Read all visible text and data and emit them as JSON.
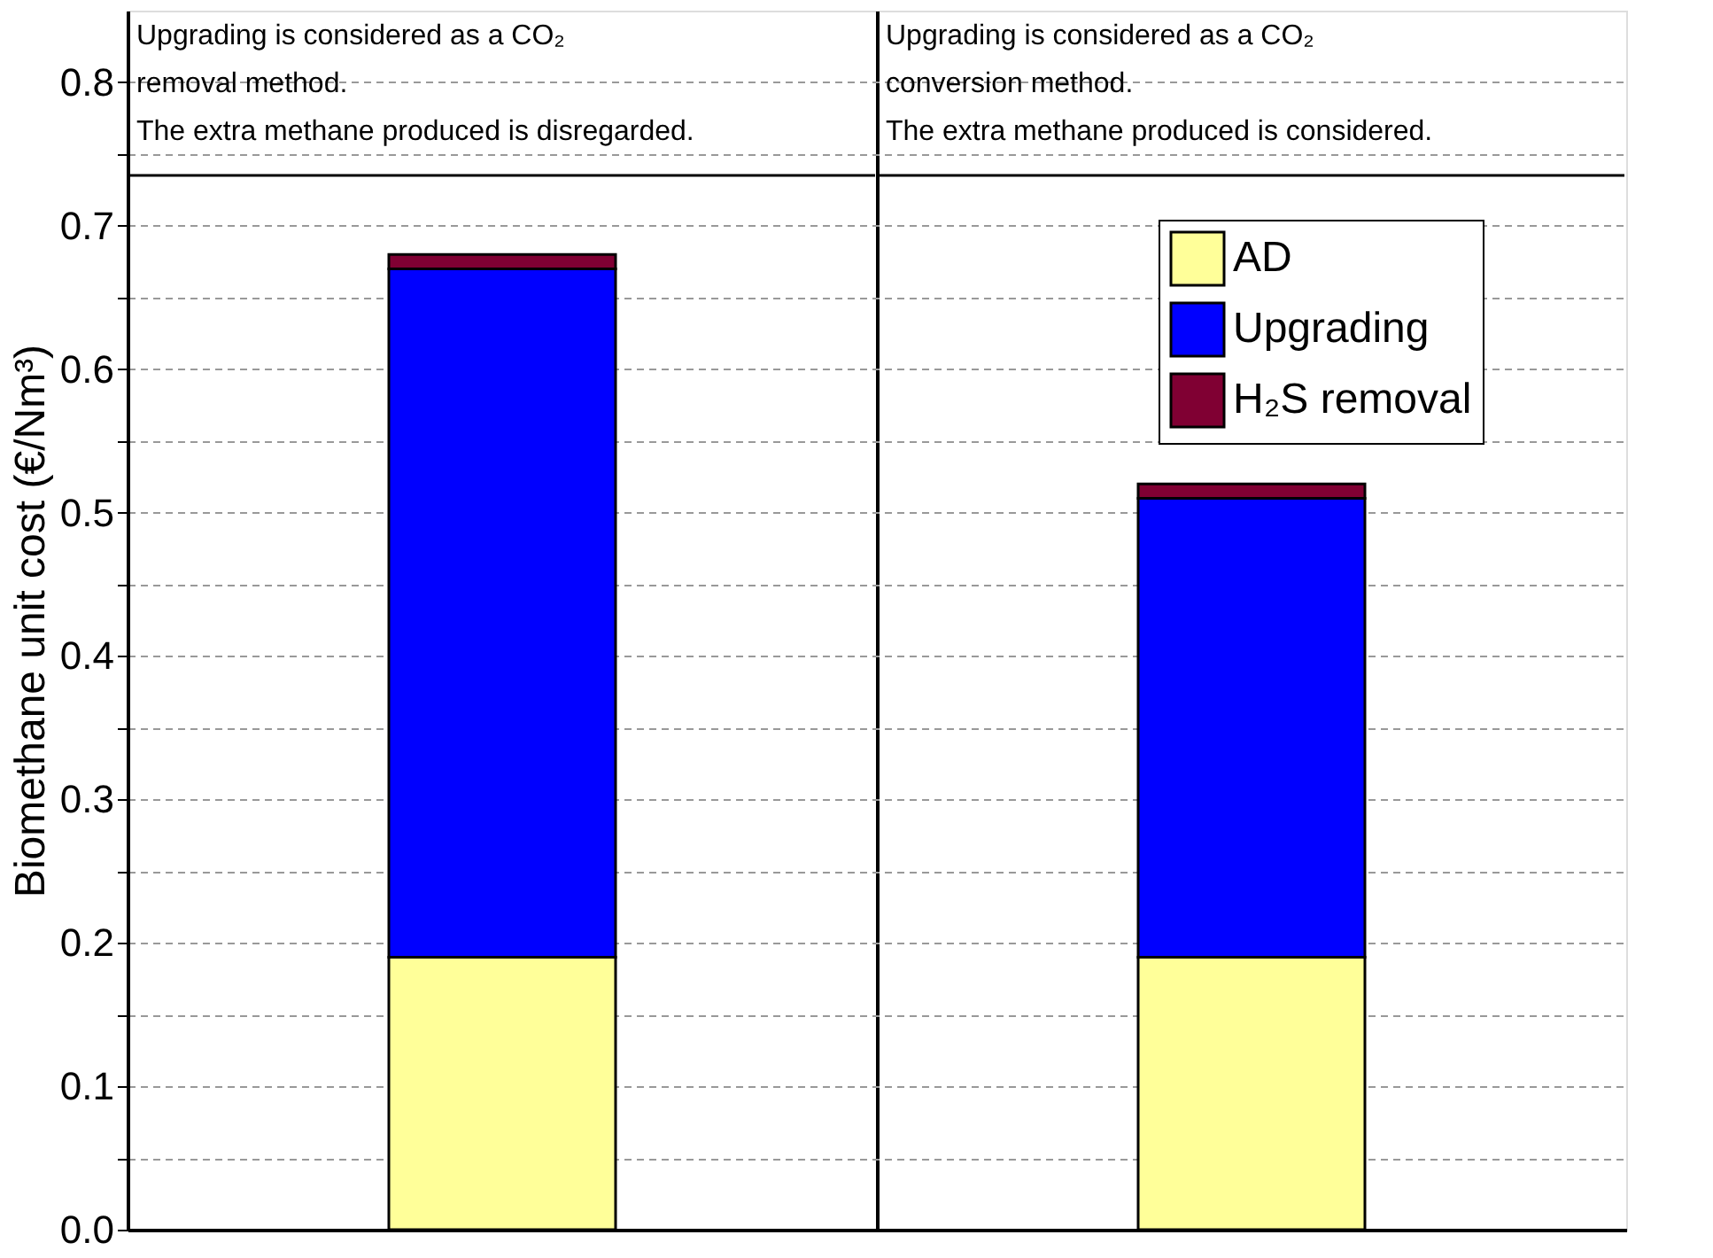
{
  "chart_data": {
    "type": "bar",
    "stacked": true,
    "categories": [
      null,
      null
    ],
    "ylabel": "Biomethane unit cost (€/Nm³)",
    "ylim": [
      0,
      0.85
    ],
    "yticks": [
      {
        "value": 0,
        "label": "0.0"
      },
      {
        "value": 0.05,
        "label": null
      },
      0.1,
      {
        "value": 0.15,
        "label": null
      },
      0.2,
      {
        "value": 0.25,
        "label": null
      },
      0.3,
      {
        "value": 0.35,
        "label": null
      },
      0.4,
      {
        "value": 0.45,
        "label": null
      },
      0.5,
      {
        "value": 0.55,
        "label": null
      },
      0.6,
      {
        "value": 0.65,
        "label": null
      },
      0.7,
      {
        "value": 0.75,
        "label": null
      },
      0.8
    ],
    "grid": true,
    "legend": "top right",
    "tick_labels": "y",
    "annotations": [
      "Upgrading is considered as a CO₂\nremoval method.\nThe extra methane produced is disregarded.",
      "Upgrading is considered as a CO₂\nconversion method.\nThe extra methane produced is considered."
    ],
    "series": [
      {
        "name": "AD",
        "color": "#ffff99",
        "values": [
          0.19,
          0.19
        ]
      },
      {
        "name": "Upgrading",
        "color": "#0000ff",
        "values": [
          0.48,
          0.32
        ]
      },
      {
        "name": "H₂S removal",
        "color": "#800033",
        "values": [
          0.01,
          0.01
        ]
      }
    ]
  }
}
